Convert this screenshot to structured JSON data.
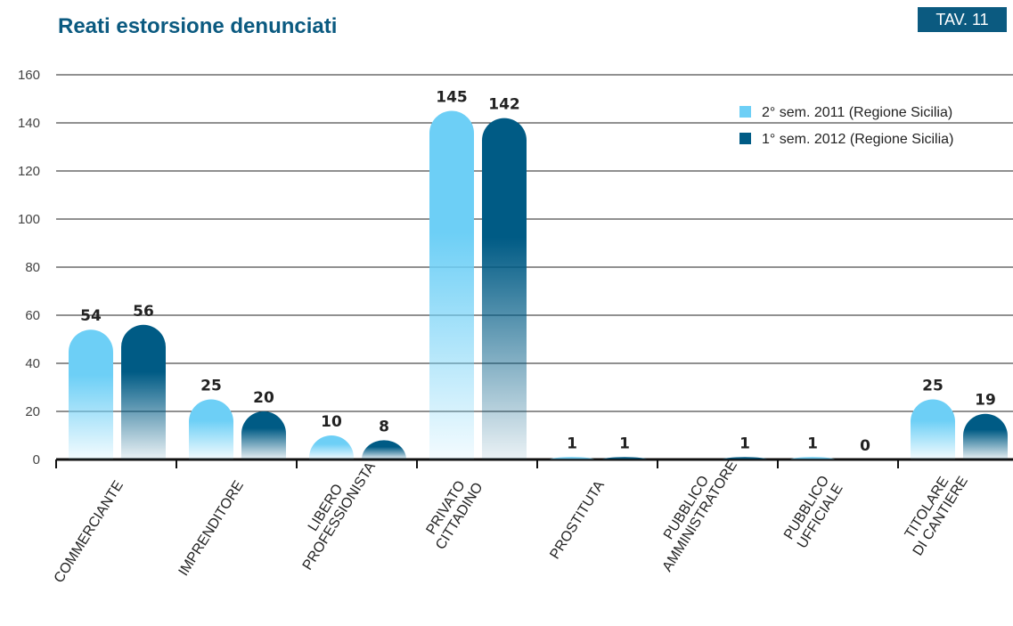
{
  "chart_data": {
    "type": "bar",
    "title": "Reati estorsione denunciati",
    "table_label": "TAV. 11",
    "categories": [
      [
        "COMMERCIANTE"
      ],
      [
        "IMPRENDITORE"
      ],
      [
        "LIBERO",
        "PROFESSIONISTA"
      ],
      [
        "PRIVATO",
        "CITTADINO"
      ],
      [
        "PROSTITUTA"
      ],
      [
        "PUBBLICO",
        "AMMINISTRATORE"
      ],
      [
        "PUBBLICO",
        "UFFICIALE"
      ],
      [
        "TITOLARE",
        "DI CANTIERE"
      ]
    ],
    "series": [
      {
        "name": "2° sem. 2011 (Regione Sicilia)",
        "color": "#6dcff6",
        "values": [
          54,
          25,
          10,
          145,
          1,
          null,
          1,
          25
        ]
      },
      {
        "name": "1° sem. 2012 (Regione Sicilia)",
        "color": "#005b85",
        "values": [
          56,
          20,
          8,
          142,
          1,
          1,
          0,
          19
        ]
      }
    ],
    "ylim": [
      0,
      160
    ],
    "yticks": [
      0,
      20,
      40,
      60,
      80,
      100,
      120,
      140,
      160
    ],
    "grid": true,
    "legend": "top-right"
  }
}
